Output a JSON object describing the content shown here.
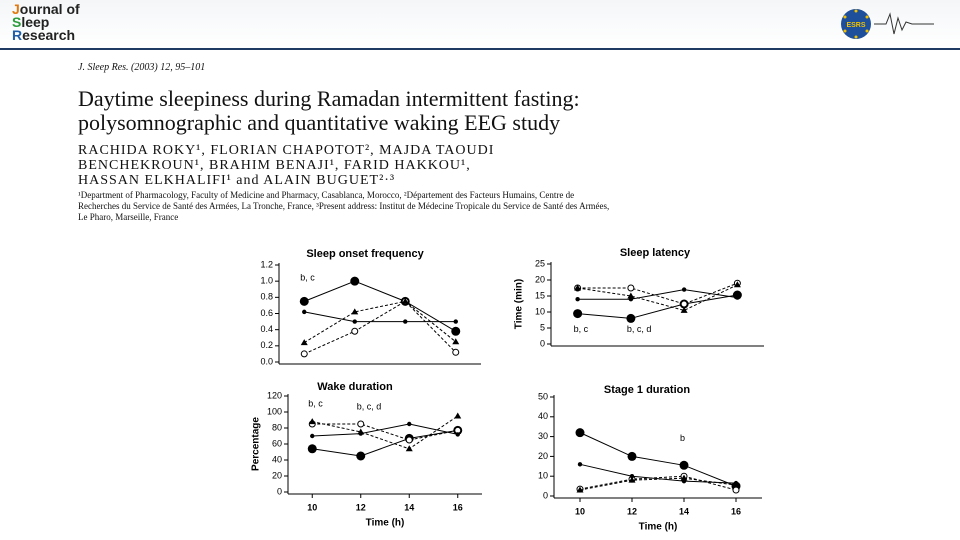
{
  "header": {
    "logo": [
      "Journal of",
      "Sleep",
      "Research"
    ],
    "society": "ESRS"
  },
  "paper": {
    "citation": "J. Sleep Res. (2003) 12, 95–101",
    "title": [
      "Daytime sleepiness during Ramadan intermittent fasting:",
      "polysomnographic and quantitative waking EEG study"
    ],
    "authors": [
      "RACHIDA ROKY¹, FLORIAN CHAPOTOT², MAJDA TAOUDI",
      "BENCHEKROUN¹, BRAHIM BENAJI¹, FARID HAKKOU¹,",
      "HASSAN ELKHALIFI¹ and ALAIN BUGUET²·³"
    ],
    "affiliations": [
      "¹Department of Pharmacology, Faculty of Medicine and Pharmacy, Casablanca, Morocco, ²Département des Facteurs Humains, Centre de",
      "Recherches du Service de Santé des Armées, La Tronche, France, ³Present address: Institut de Médecine Tropicale du Service de Santé des Armées,",
      "Le Pharo, Marseille, France"
    ]
  },
  "chart_data": [
    {
      "type": "line",
      "title": "Sleep onset frequency",
      "x": [
        10,
        12,
        14,
        16
      ],
      "xlim": [
        9,
        17
      ],
      "ylim": [
        0,
        1.2
      ],
      "yticks": [
        {
          "value": 0,
          "label": "0.0"
        },
        0.2,
        0.4,
        0.6,
        0.8,
        {
          "value": 1,
          "label": "1.0"
        },
        1.2
      ],
      "series": [
        {
          "marker": "filled-circle",
          "color": "#000",
          "values": [
            0.75,
            1.0,
            0.75,
            0.38
          ]
        },
        {
          "marker": "open-circle",
          "color": "#000",
          "values": [
            0.1,
            0.38,
            0.75,
            0.12
          ]
        },
        {
          "marker": "triangle",
          "color": "#000",
          "values": [
            0.24,
            0.62,
            0.75,
            0.25
          ]
        },
        {
          "marker": "dot",
          "color": "#000",
          "values": [
            0.62,
            0.5,
            0.5,
            0.5
          ]
        }
      ],
      "annotations": [
        {
          "text": "b, c",
          "x": 10,
          "y": 1.04
        }
      ]
    },
    {
      "type": "line",
      "title": "Sleep latency",
      "ylabel": "Time (min)",
      "x": [
        10,
        12,
        14,
        16
      ],
      "xlim": [
        9,
        17
      ],
      "ylim": [
        0,
        25
      ],
      "yticks": [
        0,
        5,
        10,
        15,
        20,
        25
      ],
      "series": [
        {
          "marker": "filled-circle",
          "color": "#000",
          "values": [
            9.5,
            8,
            12.5,
            15.3
          ]
        },
        {
          "marker": "open-circle",
          "color": "#000",
          "values": [
            17.5,
            17.5,
            12.5,
            19
          ]
        },
        {
          "marker": "triangle",
          "color": "#000",
          "values": [
            17.5,
            15,
            10.5,
            18.5
          ]
        },
        {
          "marker": "dot",
          "color": "#000",
          "values": [
            14,
            14,
            17,
            14.5
          ]
        }
      ],
      "annotations": [
        {
          "text": "b, c",
          "x": 10,
          "y": 4.5
        },
        {
          "text": "b, c, d",
          "x": 12,
          "y": 4.5
        }
      ]
    },
    {
      "type": "line",
      "title": "Wake duration",
      "ylabel": "Percentage",
      "xlabel": "Time (h)",
      "x": [
        10,
        12,
        14,
        16
      ],
      "xlim": [
        9,
        17
      ],
      "ylim": [
        0,
        120
      ],
      "yticks": [
        0,
        20,
        40,
        60,
        80,
        100,
        120
      ],
      "xticks": [
        10,
        12,
        14,
        16
      ],
      "series": [
        {
          "marker": "filled-circle",
          "color": "#000",
          "values": [
            54,
            45,
            67,
            77
          ]
        },
        {
          "marker": "open-circle",
          "color": "#000",
          "values": [
            85,
            85,
            65,
            77
          ]
        },
        {
          "marker": "triangle",
          "color": "#000",
          "values": [
            88,
            75,
            54,
            95
          ]
        },
        {
          "marker": "dot",
          "color": "#000",
          "values": [
            70,
            73,
            85,
            72
          ]
        }
      ],
      "annotations": [
        {
          "text": "b, c",
          "x": 10,
          "y": 110
        },
        {
          "text": "b, c, d",
          "x": 12,
          "y": 106
        }
      ]
    },
    {
      "type": "line",
      "title": "Stage 1 duration",
      "xlabel": "Time (h)",
      "x": [
        10,
        12,
        14,
        16
      ],
      "xlim": [
        9,
        17
      ],
      "ylim": [
        0,
        50
      ],
      "yticks": [
        0,
        10,
        20,
        30,
        40,
        50
      ],
      "xticks": [
        10,
        12,
        14,
        16
      ],
      "series": [
        {
          "marker": "filled-circle",
          "color": "#000",
          "values": [
            32,
            20,
            15.5,
            5
          ]
        },
        {
          "marker": "open-circle",
          "color": "#000",
          "values": [
            3.5,
            8.5,
            10,
            3
          ]
        },
        {
          "marker": "triangle",
          "color": "#000",
          "values": [
            3,
            8,
            9,
            5.5
          ]
        },
        {
          "marker": "dot",
          "color": "#000",
          "values": [
            16,
            10,
            7.5,
            6.5
          ]
        }
      ],
      "annotations": [
        {
          "text": "b",
          "x": 14,
          "y": 29
        }
      ]
    }
  ]
}
